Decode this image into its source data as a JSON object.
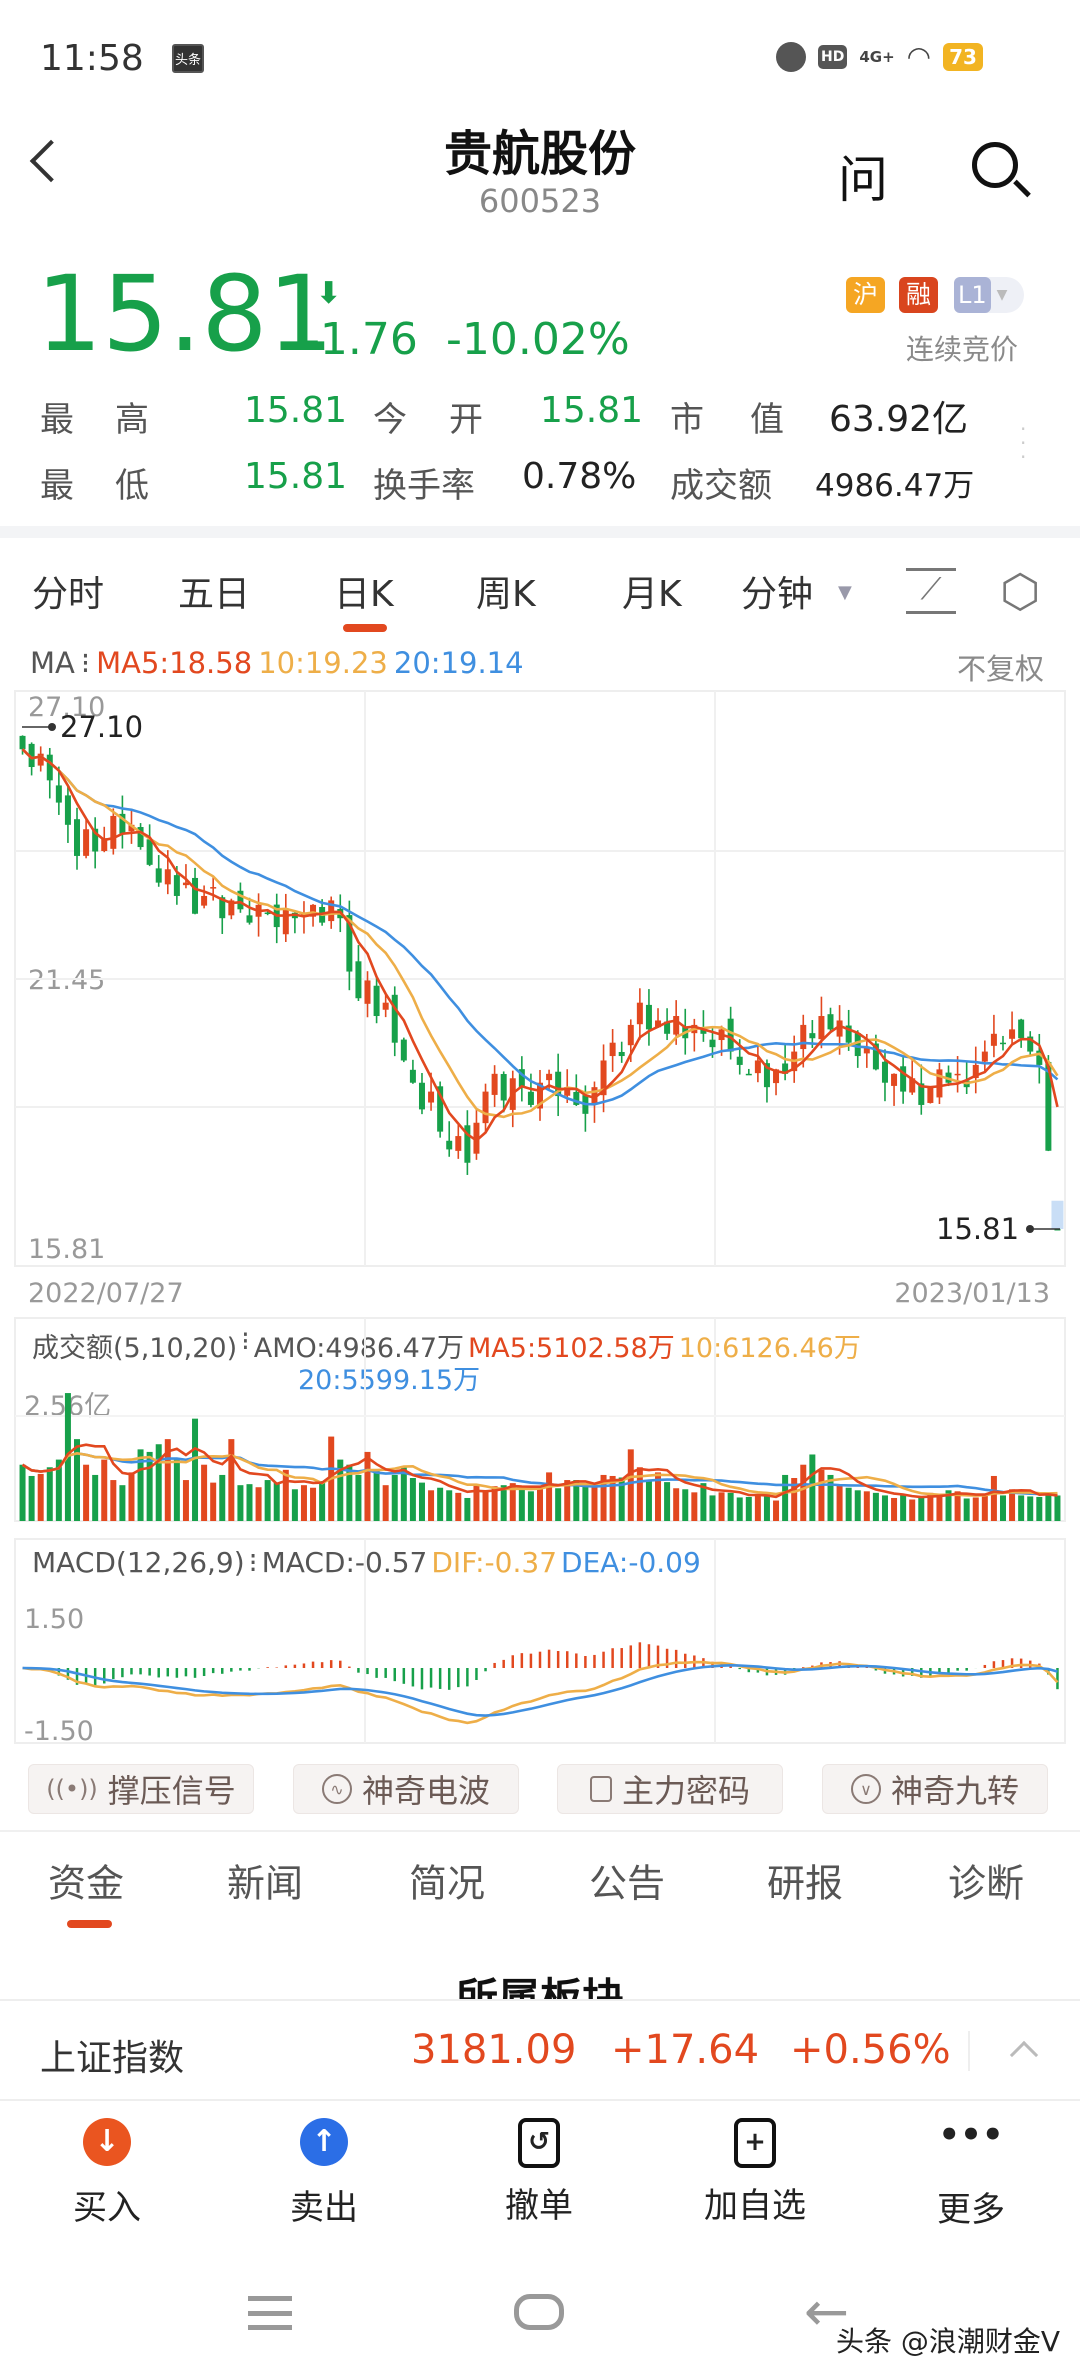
{
  "status_bar": {
    "time": "11:58",
    "app_badge": "头条",
    "network": "4G+",
    "battery": "73",
    "icons": [
      "alarm-icon",
      "hd-icon",
      "signal-icon",
      "wifi-icon",
      "battery-icon"
    ]
  },
  "header": {
    "title": "贵航股份",
    "code": "600523",
    "ask_label": "问",
    "icons": [
      "back-icon",
      "search-icon"
    ]
  },
  "quote": {
    "price": "15.81",
    "change": "-1.76",
    "change_pct": "-10.02%",
    "direction": "down",
    "badges": [
      "沪",
      "融",
      "L1"
    ],
    "session": "连续竞价",
    "high_label": [
      "最",
      "高"
    ],
    "high": "15.81",
    "open_label": [
      "今",
      "开"
    ],
    "open": "15.81",
    "mcap_label": [
      "市",
      "值"
    ],
    "mcap": "63.92亿",
    "low_label": [
      "最",
      "低"
    ],
    "low": "15.81",
    "turnover_label": "换手率",
    "turnover": "0.78%",
    "amount_label": "成交额",
    "amount": "4986.47万"
  },
  "period_tabs": {
    "items": [
      "分时",
      "五日",
      "日K",
      "周K",
      "月K",
      "分钟"
    ],
    "active": "日K"
  },
  "ma_legend": {
    "name": "MA",
    "ma5": "MA5:18.58",
    "ma10": "10:19.23",
    "ma20": "20:19.14",
    "adjust": "不复权"
  },
  "volume_legend": {
    "name": "成交额(5,10,20)",
    "amo": "AMO:4986.47万",
    "ma5": "MA5:5102.58万",
    "ma10": "10:6126.46万",
    "ma20": "20:5599.15万",
    "axis_max": "2.56亿"
  },
  "macd_legend": {
    "name": "MACD(12,26,9)",
    "macd": "MACD:-0.57",
    "dif": "DIF:-0.37",
    "dea": "DEA:-0.09",
    "axis_max": "1.50",
    "axis_min": "-1.50"
  },
  "colors": {
    "up": "#e2481f",
    "down": "#17a04a",
    "ma5": "#e2481f",
    "ma10": "#eeae48",
    "ma20": "#3f8fe0",
    "accent": "#e2481f"
  },
  "chart_data": {
    "type": "candlestick",
    "x_start": "2022/07/27",
    "x_end": "2023/01/13",
    "y_max_label": "27.10",
    "y_mid_label": "21.45",
    "y_min_label": "15.81",
    "ylim": [
      15.81,
      27.1
    ],
    "max_marker": "27.10",
    "min_marker": "15.81",
    "close": [
      26.6,
      26.2,
      26.5,
      25.9,
      25.4,
      24.9,
      24.2,
      24.8,
      24.3,
      24.6,
      25.1,
      24.7,
      24.9,
      24.4,
      24.0,
      23.6,
      23.9,
      23.3,
      23.6,
      22.9,
      23.3,
      23.5,
      22.8,
      23.2,
      23.0,
      22.7,
      23.1,
      22.9,
      22.6,
      23.0,
      22.8,
      22.9,
      23.1,
      22.7,
      23.2,
      22.8,
      21.6,
      21.0,
      21.4,
      20.6,
      20.9,
      20.0,
      19.6,
      19.1,
      18.5,
      18.9,
      18.0,
      17.6,
      17.9,
      17.3,
      18.2,
      18.9,
      19.3,
      18.7,
      19.2,
      19.0,
      18.6,
      19.1,
      19.3,
      18.8,
      19.0,
      18.6,
      18.4,
      19.0,
      19.6,
      20.0,
      19.7,
      20.4,
      20.9,
      20.3,
      20.5,
      20.2,
      20.6,
      20.1,
      20.4,
      20.2,
      19.9,
      20.3,
      19.8,
      19.5,
      19.3,
      19.6,
      19.0,
      19.4,
      19.3,
      19.8,
      20.4,
      20.1,
      20.6,
      20.3,
      20.5,
      20.0,
      19.7,
      19.9,
      19.4,
      19.1,
      19.3,
      18.9,
      19.2,
      18.6,
      19.0,
      19.4,
      19.1,
      19.3,
      19.0,
      19.5,
      19.8,
      20.2,
      20.0,
      20.3,
      20.1,
      19.8,
      19.5,
      17.57,
      15.81
    ],
    "volume_wan": [
      11000,
      8800,
      9200,
      10500,
      12000,
      25000,
      16000,
      11000,
      9000,
      12000,
      8000,
      7000,
      9500,
      14000,
      13500,
      15000,
      16000,
      12000,
      8000,
      20000,
      11000,
      7500,
      9000,
      16000,
      7000,
      7200,
      6600,
      8000,
      7500,
      10000,
      6200,
      7000,
      6500,
      7800,
      16500,
      12000,
      11000,
      9000,
      13500,
      10000,
      7000,
      9000,
      10500,
      8400,
      7500,
      6000,
      6500,
      6000,
      5500,
      4500,
      7000,
      6000,
      6800,
      7000,
      7400,
      6500,
      5800,
      6800,
      9500,
      6400,
      8000,
      8000,
      6800,
      7200,
      9000,
      8800,
      8500,
      14000,
      10500,
      8000,
      9500,
      7600,
      6400,
      6200,
      5600,
      7400,
      5000,
      5600,
      5500,
      4600,
      4700,
      5000,
      5200,
      4000,
      9000,
      8400,
      11000,
      13000,
      10000,
      9000,
      7000,
      6500,
      6000,
      5800,
      5500,
      5000,
      4500,
      5100,
      4200,
      4600,
      5500,
      5000,
      6000,
      5800,
      4400,
      4600,
      5000,
      8800,
      5000,
      6200,
      5000,
      4800,
      4700,
      5400,
      4986.47
    ],
    "volume_max": 25600,
    "macd_range": [
      -1.5,
      1.5
    ]
  },
  "tool_buttons": [
    {
      "label": "撑压信号",
      "icon": "signal-icon"
    },
    {
      "label": "神奇电波",
      "icon": "wave-icon"
    },
    {
      "label": "主力密码",
      "icon": "lock-icon"
    },
    {
      "label": "神奇九转",
      "icon": "chevron-circle-icon"
    }
  ],
  "info_tabs": {
    "items": [
      "资金",
      "新闻",
      "简况",
      "公告",
      "研报",
      "诊断"
    ],
    "active": "资金"
  },
  "section_title": "所属板块",
  "index_bar": {
    "name": "上证指数",
    "value": "3181.09",
    "change": "+17.64",
    "change_pct": "+0.56%"
  },
  "actions": [
    {
      "label": "买入",
      "icon": "buy-arrow-icon"
    },
    {
      "label": "卖出",
      "icon": "sell-arrow-icon"
    },
    {
      "label": "撤单",
      "icon": "cancel-order-icon"
    },
    {
      "label": "加自选",
      "icon": "add-watchlist-icon"
    },
    {
      "label": "更多",
      "icon": "more-icon"
    }
  ],
  "watermark": "头条 @浪潮财金V"
}
